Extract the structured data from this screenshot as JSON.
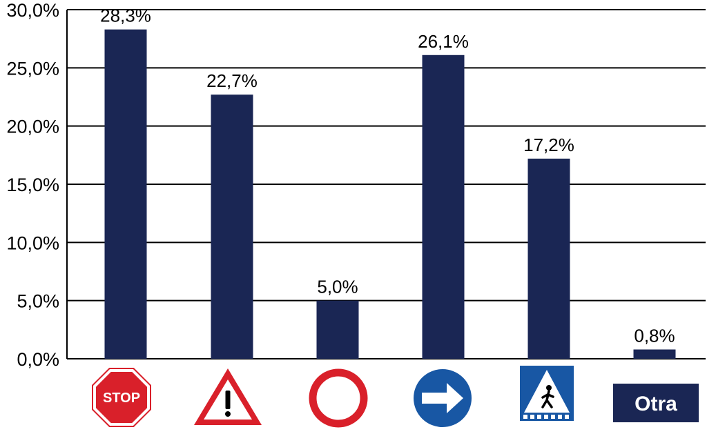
{
  "chart_data": {
    "type": "bar",
    "categories": [
      "stop-sign",
      "warning-sign",
      "prohibition-sign",
      "direction-sign",
      "pedestrian-crossing-sign",
      "Otra"
    ],
    "values": [
      28.3,
      22.7,
      5.0,
      26.1,
      17.2,
      0.8
    ],
    "value_labels": [
      "28,3%",
      "22,7%",
      "5,0%",
      "26,1%",
      "17,2%",
      "0,8%"
    ],
    "yticks": [
      0,
      5,
      10,
      15,
      20,
      25,
      30
    ],
    "ytick_labels": [
      "0,0%",
      "5,0%",
      "10,0%",
      "15,0%",
      "20,0%",
      "25,0%",
      "30,0%"
    ],
    "ylim": [
      0,
      30
    ],
    "grid": true,
    "legend": "none",
    "title": "",
    "xlabel": "",
    "ylabel": "",
    "colors": {
      "bar": "#1a2654",
      "stop_red": "#d9202a",
      "direction_blue": "#1857a4",
      "otra_box": "#1a2654"
    }
  },
  "signs": {
    "stop_text": "STOP",
    "otra_text": "Otra"
  }
}
